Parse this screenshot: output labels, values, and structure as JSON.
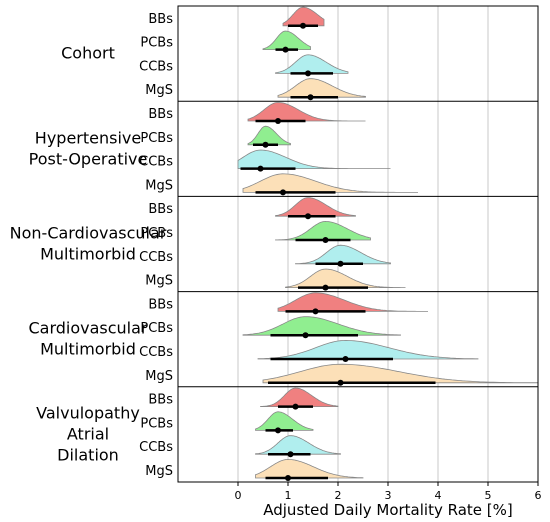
{
  "chart_data": {
    "type": "ridgeline",
    "xlabel": "Adjusted Daily Mortality Rate [%]",
    "xlim": [
      -1.2,
      6
    ],
    "xticks": [
      0,
      1,
      2,
      3,
      4,
      5,
      6
    ],
    "grid": true,
    "drug_colors": {
      "BBs": "#f08080",
      "PCBs": "#90ee90",
      "CCBs": "#b0eeee",
      "MgS": "#fce0b8"
    },
    "groups": [
      {
        "name": "Cohort",
        "label_lines": [
          "Cohort"
        ],
        "rows": [
          {
            "drug": "BBs",
            "center": 1.3,
            "spread": 0.2,
            "min": 0.9,
            "max": 1.72,
            "ci": [
              1.0,
              1.6
            ]
          },
          {
            "drug": "PCBs",
            "center": 0.95,
            "spread": 0.18,
            "min": 0.5,
            "max": 1.45,
            "ci": [
              0.75,
              1.2
            ]
          },
          {
            "drug": "CCBs",
            "center": 1.4,
            "spread": 0.25,
            "min": 0.75,
            "max": 2.2,
            "ci": [
              1.05,
              1.9
            ]
          },
          {
            "drug": "MgS",
            "center": 1.45,
            "spread": 0.3,
            "min": 0.8,
            "max": 2.55,
            "ci": [
              1.05,
              2.0
            ]
          }
        ]
      },
      {
        "name": "Hypertensive Post-Operative",
        "label_lines": [
          "Hypertensive",
          "Post-Operative"
        ],
        "rows": [
          {
            "drug": "BBs",
            "center": 0.8,
            "spread": 0.28,
            "min": 0.2,
            "max": 2.55,
            "ci": [
              0.35,
              1.35
            ]
          },
          {
            "drug": "PCBs",
            "center": 0.55,
            "spread": 0.15,
            "min": 0.2,
            "max": 1.05,
            "ci": [
              0.3,
              0.8
            ]
          },
          {
            "drug": "CCBs",
            "center": 0.45,
            "spread": 0.35,
            "min": 0.0,
            "max": 3.05,
            "ci": [
              0.05,
              1.15
            ]
          },
          {
            "drug": "MgS",
            "center": 0.9,
            "spread": 0.45,
            "min": 0.1,
            "max": 3.6,
            "ci": [
              0.35,
              1.95
            ]
          }
        ]
      },
      {
        "name": "Non-Cardiovascular Multimorbid",
        "label_lines": [
          "Non-Cardiovascular",
          "Multimorbid"
        ],
        "rows": [
          {
            "drug": "BBs",
            "center": 1.4,
            "spread": 0.25,
            "min": 0.75,
            "max": 2.35,
            "ci": [
              1.0,
              1.95
            ]
          },
          {
            "drug": "PCBs",
            "center": 1.75,
            "spread": 0.3,
            "min": 0.75,
            "max": 2.65,
            "ci": [
              1.15,
              2.25
            ]
          },
          {
            "drug": "CCBs",
            "center": 2.05,
            "spread": 0.28,
            "min": 1.15,
            "max": 3.05,
            "ci": [
              1.55,
              2.5
            ]
          },
          {
            "drug": "MgS",
            "center": 1.75,
            "spread": 0.3,
            "min": 0.95,
            "max": 3.35,
            "ci": [
              1.2,
              2.6
            ]
          }
        ]
      },
      {
        "name": "Cardiovascular Multimorbid",
        "label_lines": [
          "Cardiovascular",
          "Multimorbid"
        ],
        "rows": [
          {
            "drug": "BBs",
            "center": 1.55,
            "spread": 0.4,
            "min": 0.8,
            "max": 3.8,
            "ci": [
              0.95,
              2.55
            ]
          },
          {
            "drug": "PCBs",
            "center": 1.35,
            "spread": 0.45,
            "min": 0.1,
            "max": 3.25,
            "ci": [
              0.65,
              2.4
            ]
          },
          {
            "drug": "CCBs",
            "center": 2.15,
            "spread": 0.6,
            "min": 0.4,
            "max": 4.8,
            "ci": [
              0.65,
              3.1
            ]
          },
          {
            "drug": "MgS",
            "center": 2.05,
            "spread": 0.8,
            "min": 0.5,
            "max": 6.0,
            "ci": [
              0.6,
              3.95
            ]
          }
        ]
      },
      {
        "name": "Valvulopathy Atrial Dilation",
        "label_lines": [
          "Valvulopathy",
          "Atrial",
          "Dilation"
        ],
        "rows": [
          {
            "drug": "BBs",
            "center": 1.15,
            "spread": 0.22,
            "min": 0.45,
            "max": 2.0,
            "ci": [
              0.8,
              1.5
            ]
          },
          {
            "drug": "PCBs",
            "center": 0.8,
            "spread": 0.2,
            "min": 0.35,
            "max": 1.5,
            "ci": [
              0.55,
              1.1
            ]
          },
          {
            "drug": "CCBs",
            "center": 1.05,
            "spread": 0.25,
            "min": 0.35,
            "max": 2.05,
            "ci": [
              0.6,
              1.45
            ]
          },
          {
            "drug": "MgS",
            "center": 1.0,
            "spread": 0.35,
            "min": 0.35,
            "max": 2.5,
            "ci": [
              0.55,
              1.8
            ]
          }
        ]
      }
    ]
  }
}
